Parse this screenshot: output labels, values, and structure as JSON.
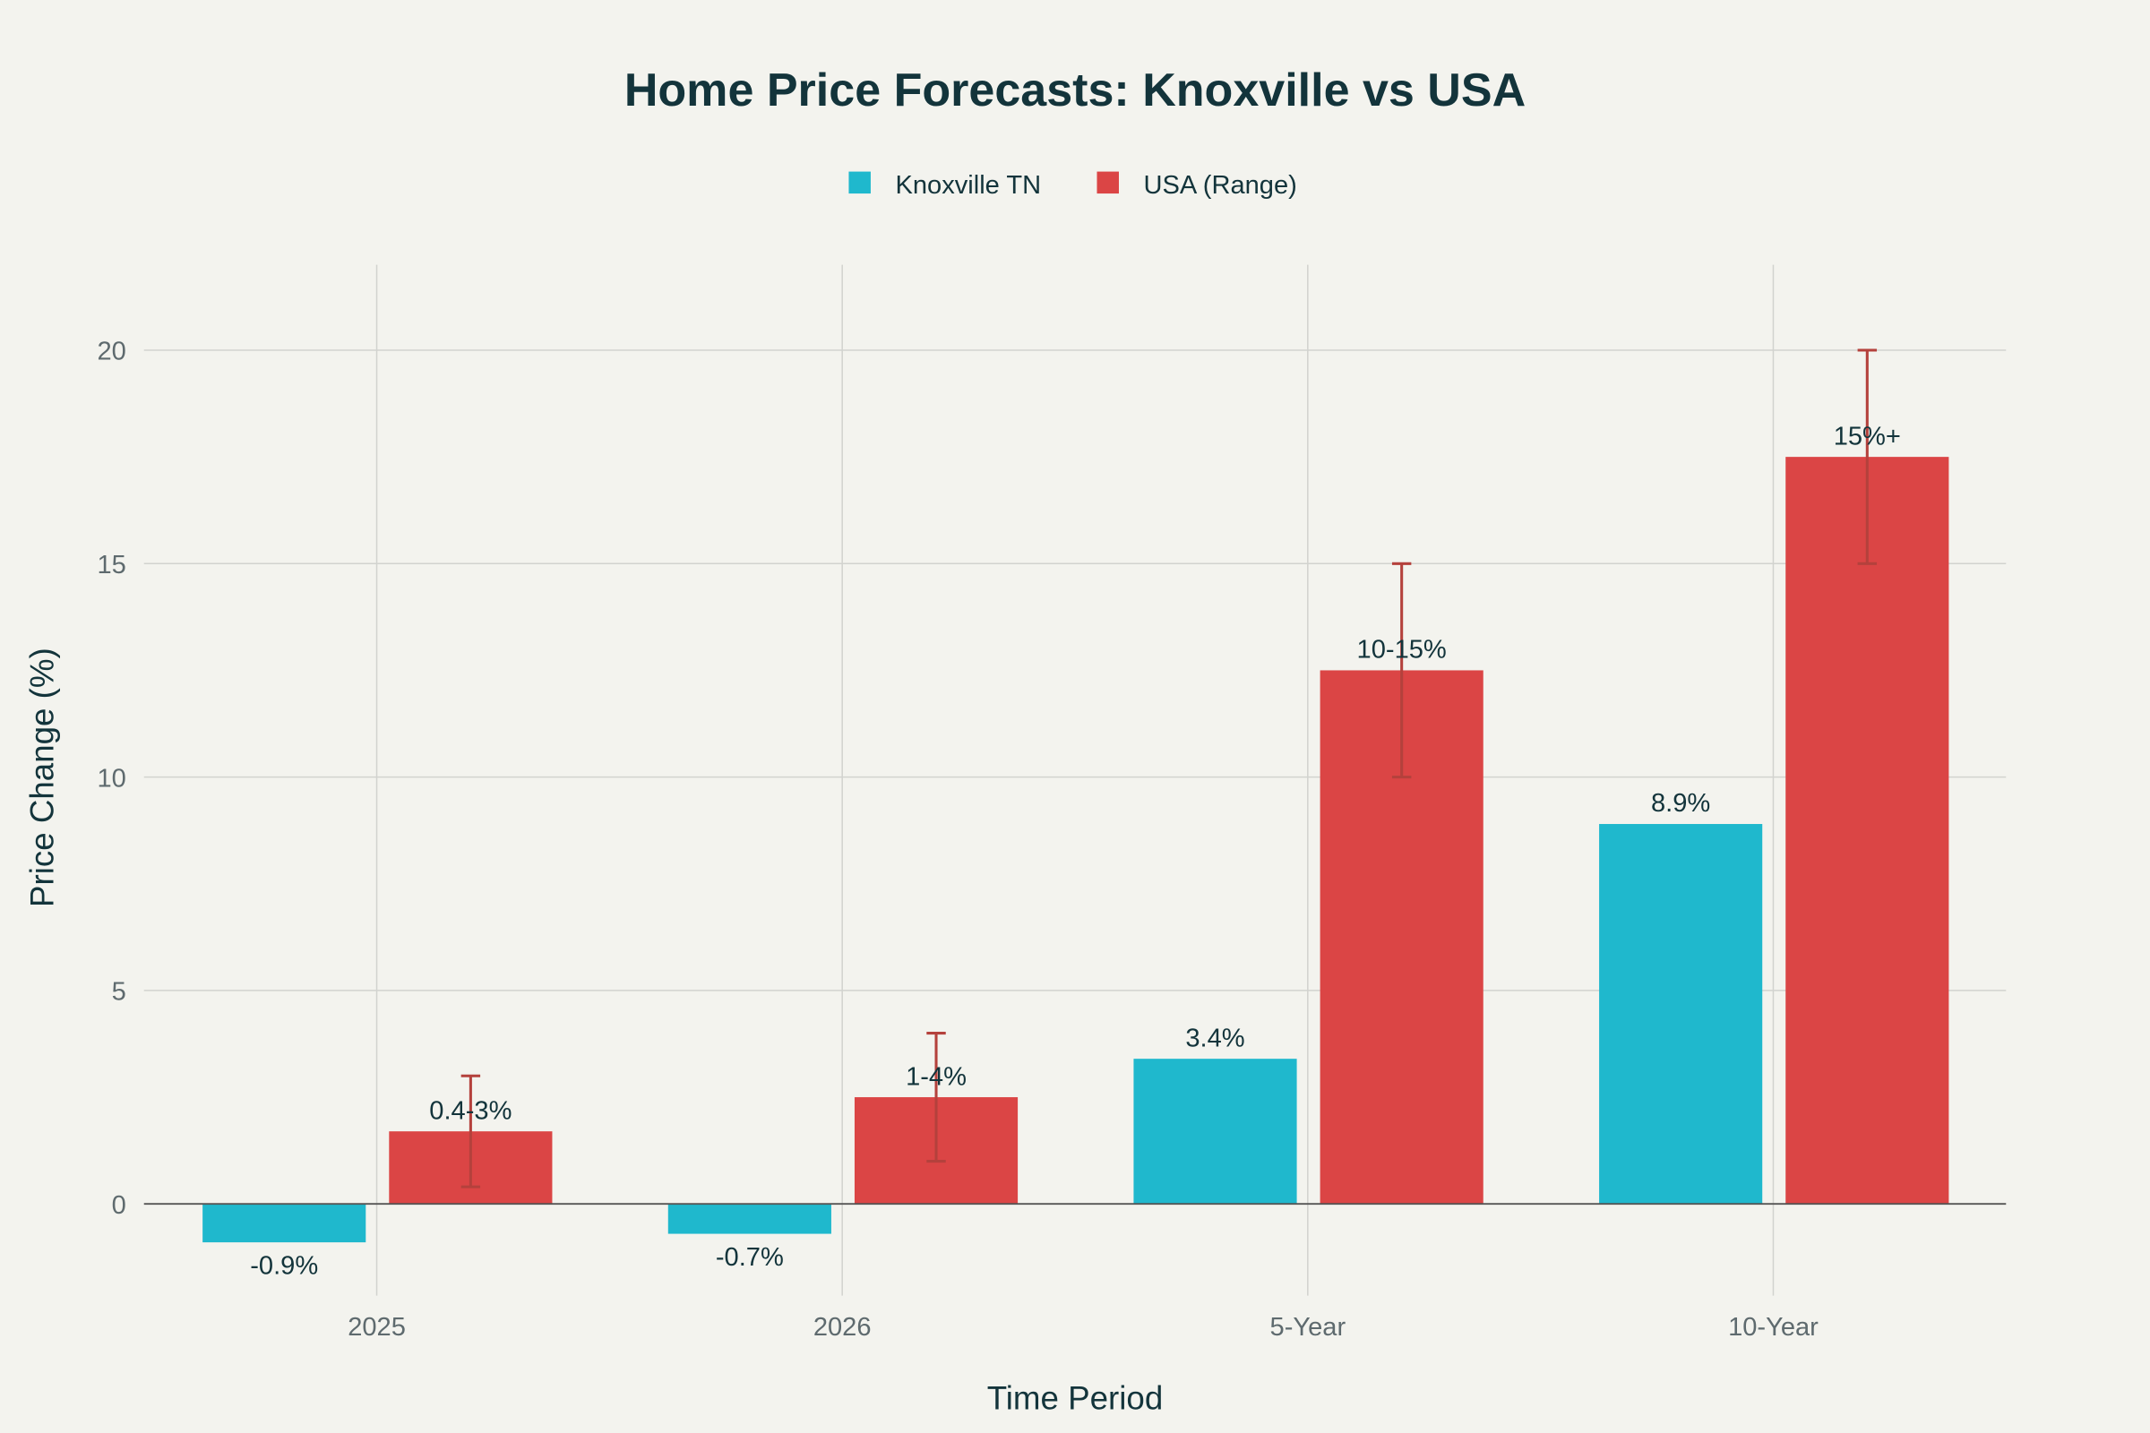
{
  "chart_data": {
    "type": "bar",
    "title": "Home Price Forecasts: Knoxville vs USA",
    "xlabel": "Time Period",
    "ylabel": "Price Change (%)",
    "categories": [
      "2025",
      "2026",
      "5-Year",
      "10-Year"
    ],
    "ylim": [
      -2.15,
      22
    ],
    "yticks": [
      0,
      5,
      10,
      15,
      20
    ],
    "grid": true,
    "legend_position": "top-center",
    "series": [
      {
        "name": "Knoxville TN",
        "color": "#1FB8CD",
        "values": [
          -0.9,
          -0.7,
          3.4,
          8.9
        ],
        "labels": [
          "-0.9%",
          "-0.7%",
          "3.4%",
          "8.9%"
        ]
      },
      {
        "name": "USA (Range)",
        "color": "#DB4545",
        "error_color": "#B4413C",
        "values": [
          1.7,
          2.5,
          12.5,
          17.5
        ],
        "error_low": [
          0.4,
          1,
          10,
          15
        ],
        "error_high": [
          3,
          4,
          15,
          20
        ],
        "labels": [
          "0.4-3%",
          "1-4%",
          "10-15%",
          "15%+"
        ]
      }
    ]
  }
}
